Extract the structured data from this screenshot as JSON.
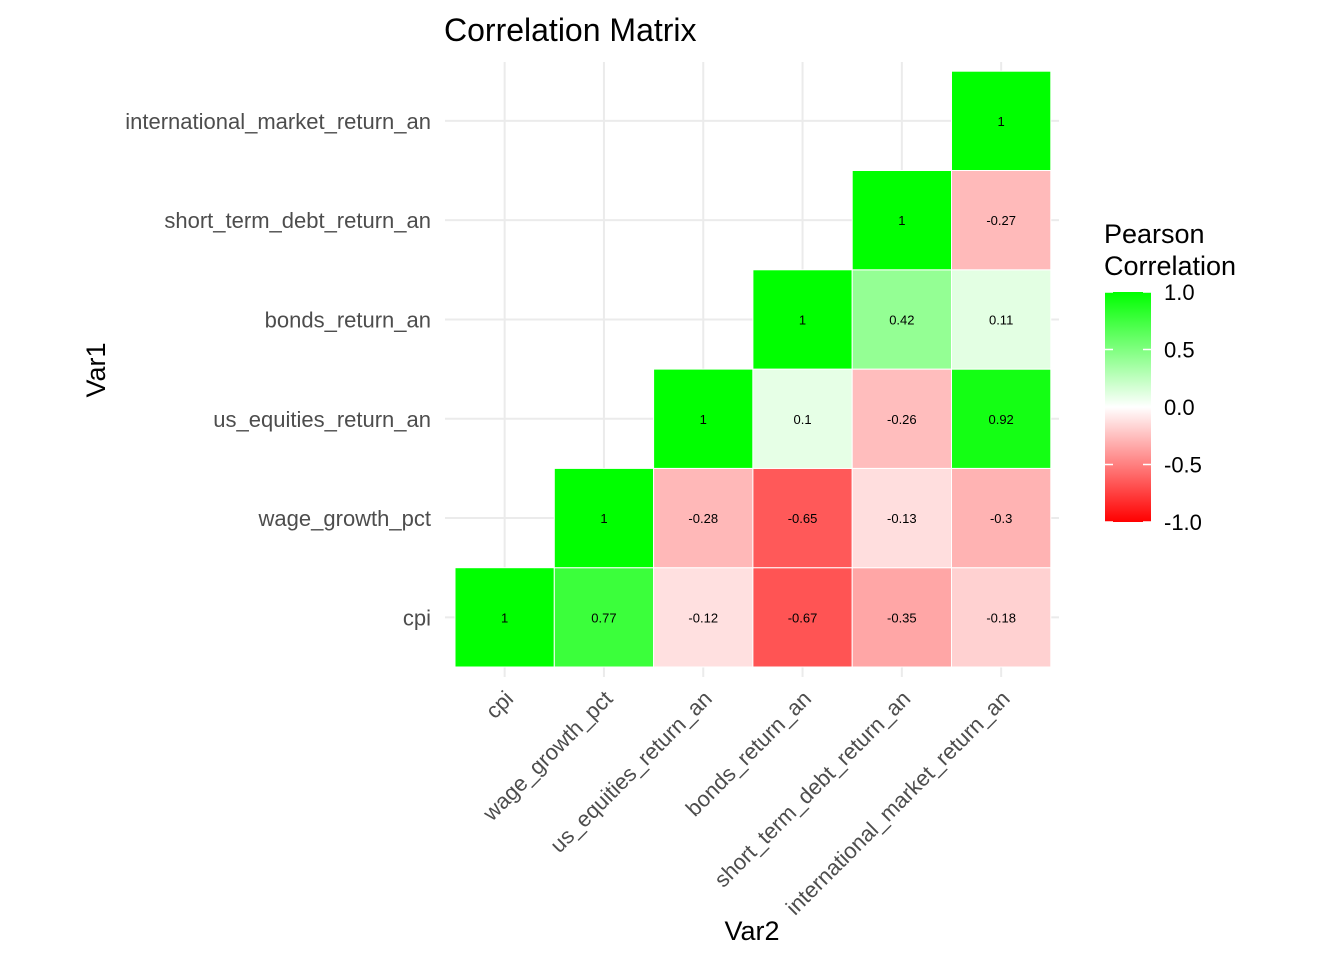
{
  "chart_data": {
    "type": "heatmap",
    "title": "Correlation Matrix",
    "xlabel": "Var2",
    "ylabel": "Var1",
    "variables": [
      "cpi",
      "wage_growth_pct",
      "us_equities_return_an",
      "bonds_return_an",
      "short_term_debt_return_an",
      "international_market_return_an"
    ],
    "cells": [
      {
        "var1": "cpi",
        "var2": "cpi",
        "value": 1,
        "label": "1"
      },
      {
        "var1": "cpi",
        "var2": "wage_growth_pct",
        "value": 0.77,
        "label": "0.77"
      },
      {
        "var1": "cpi",
        "var2": "us_equities_return_an",
        "value": -0.12,
        "label": "-0.12"
      },
      {
        "var1": "cpi",
        "var2": "bonds_return_an",
        "value": -0.67,
        "label": "-0.67"
      },
      {
        "var1": "cpi",
        "var2": "short_term_debt_return_an",
        "value": -0.35,
        "label": "-0.35"
      },
      {
        "var1": "cpi",
        "var2": "international_market_return_an",
        "value": -0.18,
        "label": "-0.18"
      },
      {
        "var1": "wage_growth_pct",
        "var2": "wage_growth_pct",
        "value": 1,
        "label": "1"
      },
      {
        "var1": "wage_growth_pct",
        "var2": "us_equities_return_an",
        "value": -0.28,
        "label": "-0.28"
      },
      {
        "var1": "wage_growth_pct",
        "var2": "bonds_return_an",
        "value": -0.65,
        "label": "-0.65"
      },
      {
        "var1": "wage_growth_pct",
        "var2": "short_term_debt_return_an",
        "value": -0.13,
        "label": "-0.13"
      },
      {
        "var1": "wage_growth_pct",
        "var2": "international_market_return_an",
        "value": -0.3,
        "label": "-0.3"
      },
      {
        "var1": "us_equities_return_an",
        "var2": "us_equities_return_an",
        "value": 1,
        "label": "1"
      },
      {
        "var1": "us_equities_return_an",
        "var2": "bonds_return_an",
        "value": 0.1,
        "label": "0.1"
      },
      {
        "var1": "us_equities_return_an",
        "var2": "short_term_debt_return_an",
        "value": -0.26,
        "label": "-0.26"
      },
      {
        "var1": "us_equities_return_an",
        "var2": "international_market_return_an",
        "value": 0.92,
        "label": "0.92"
      },
      {
        "var1": "bonds_return_an",
        "var2": "bonds_return_an",
        "value": 1,
        "label": "1"
      },
      {
        "var1": "bonds_return_an",
        "var2": "short_term_debt_return_an",
        "value": 0.42,
        "label": "0.42"
      },
      {
        "var1": "bonds_return_an",
        "var2": "international_market_return_an",
        "value": 0.11,
        "label": "0.11"
      },
      {
        "var1": "short_term_debt_return_an",
        "var2": "short_term_debt_return_an",
        "value": 1,
        "label": "1"
      },
      {
        "var1": "short_term_debt_return_an",
        "var2": "international_market_return_an",
        "value": -0.27,
        "label": "-0.27"
      },
      {
        "var1": "international_market_return_an",
        "var2": "international_market_return_an",
        "value": 1,
        "label": "1"
      }
    ],
    "legend": {
      "title_lines": [
        "Pearson",
        "Correlation"
      ],
      "ticks": [
        1.0,
        0.5,
        0.0,
        -0.5,
        -1.0
      ],
      "tick_labels": [
        "1.0",
        "0.5",
        "0.0",
        "-0.5",
        "-1.0"
      ],
      "placement": "right"
    },
    "limits": [
      -1,
      1
    ],
    "colors": {
      "low": "#ff0000",
      "mid": "#ffffff",
      "high": "#00ff00",
      "grid": "#ebebeb",
      "tick_text": "#4d4d4d"
    },
    "grid": true
  }
}
